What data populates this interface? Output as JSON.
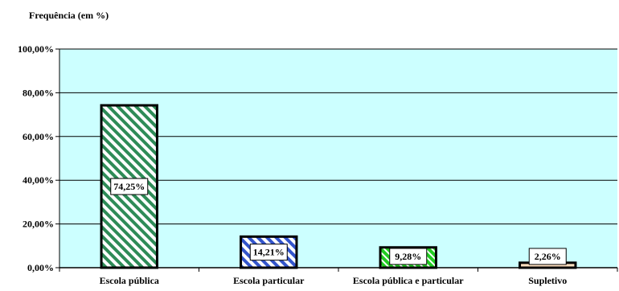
{
  "chart_data": {
    "type": "bar",
    "title": "",
    "ylabel": "Frequência (em %)",
    "xlabel": "",
    "categories": [
      "Escola pública",
      "Escola particular",
      "Escola pública e particular",
      "Supletivo"
    ],
    "values": [
      74.25,
      14.21,
      9.28,
      2.26
    ],
    "data_labels": [
      "74,25%",
      "14,21%",
      "9,28%",
      "2,26%"
    ],
    "ylim": [
      0,
      100
    ],
    "yticks": [
      0,
      20,
      40,
      60,
      80,
      100
    ],
    "ytick_labels": [
      "0,00%",
      "20,00%",
      "40,00%",
      "60,00%",
      "80,00%",
      "100,00%"
    ],
    "grid": true,
    "legend": "none",
    "plot_background": "#ccffff",
    "bar_styles": [
      {
        "fill": "#ffffff",
        "hatch": "#2e8b57"
      },
      {
        "fill": "#ffffff",
        "hatch": "#3355cc"
      },
      {
        "fill": "#ffffff",
        "hatch": "#22cc22"
      },
      {
        "fill": "#ffe0c0",
        "hatch": "#ffe0c0"
      }
    ]
  }
}
